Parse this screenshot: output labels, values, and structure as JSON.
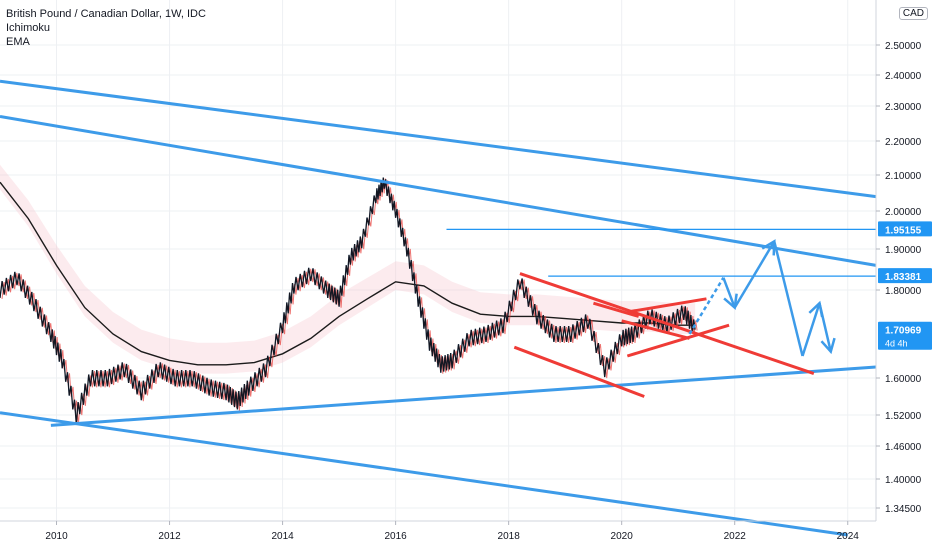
{
  "legend": {
    "title": "British Pound / Canadian Dollar, 1W, IDC",
    "ind1": "Ichimoku",
    "ind2": "EMA"
  },
  "currency_badge": "CAD",
  "colors": {
    "channel": "#3d9be9",
    "wedge": "#ef3b36",
    "hline": "#2196f3",
    "ema": "#1b1b1b",
    "price_up": "#131722",
    "conv": "#e53935",
    "base": "#2196f3",
    "cloud": "#f7c6cf",
    "label_bg": "#2196f3"
  },
  "price_labels": [
    {
      "id": "level-a",
      "text": "1.95155",
      "value": 1.95155
    },
    {
      "id": "level-b",
      "text": "1.83381",
      "value": 1.83381
    },
    {
      "id": "last",
      "text": "1.70969",
      "value": 1.70969,
      "sub": "4d 4h"
    }
  ],
  "chart_data": {
    "type": "line",
    "title": "British Pound / Canadian Dollar, 1W, IDC",
    "indicators": [
      "Ichimoku",
      "EMA"
    ],
    "ylim": [
      1.3,
      2.6
    ],
    "xlim": [
      2009.0,
      2024.5
    ],
    "y_ticks": [
      "2.50000",
      "2.40000",
      "2.30000",
      "2.20000",
      "2.10000",
      "2.00000",
      "1.90000",
      "1.80000",
      "1.60000",
      "1.52000",
      "1.46000",
      "1.40000",
      "1.34500"
    ],
    "y_tick_values": [
      2.5,
      2.4,
      2.3,
      2.2,
      2.1,
      2.0,
      1.9,
      1.8,
      1.6,
      1.52,
      1.46,
      1.4,
      1.345
    ],
    "x_ticks": [
      "2010",
      "2012",
      "2014",
      "2016",
      "2018",
      "2020",
      "2022",
      "2024"
    ],
    "x_tick_values": [
      2010,
      2012,
      2014,
      2016,
      2018,
      2020,
      2022,
      2024
    ],
    "price": {
      "name": "GBPCAD",
      "x": [
        2009.0,
        2009.3,
        2009.6,
        2009.9,
        2010.1,
        2010.35,
        2010.6,
        2010.9,
        2011.2,
        2011.5,
        2011.8,
        2012.1,
        2012.4,
        2012.7,
        2013.0,
        2013.2,
        2013.4,
        2013.7,
        2014.0,
        2014.2,
        2014.5,
        2014.8,
        2015.0,
        2015.2,
        2015.4,
        2015.65,
        2015.8,
        2016.0,
        2016.2,
        2016.4,
        2016.6,
        2016.8,
        2017.0,
        2017.3,
        2017.6,
        2017.9,
        2018.2,
        2018.5,
        2018.8,
        2019.1,
        2019.4,
        2019.7,
        2020.0,
        2020.2,
        2020.5,
        2020.8,
        2021.1,
        2021.3
      ],
      "y": [
        1.8,
        1.83,
        1.77,
        1.7,
        1.64,
        1.52,
        1.6,
        1.6,
        1.62,
        1.57,
        1.62,
        1.6,
        1.6,
        1.58,
        1.57,
        1.55,
        1.58,
        1.62,
        1.72,
        1.81,
        1.84,
        1.8,
        1.78,
        1.88,
        1.92,
        2.04,
        2.08,
        2.0,
        1.9,
        1.78,
        1.68,
        1.63,
        1.64,
        1.69,
        1.7,
        1.72,
        1.82,
        1.74,
        1.7,
        1.7,
        1.73,
        1.62,
        1.69,
        1.7,
        1.74,
        1.72,
        1.75,
        1.71
      ]
    },
    "ema": {
      "name": "EMA",
      "x": [
        2009.0,
        2009.5,
        2010.0,
        2010.5,
        2011.0,
        2011.5,
        2012.0,
        2012.5,
        2013.0,
        2013.5,
        2014.0,
        2014.5,
        2015.0,
        2015.5,
        2016.0,
        2016.5,
        2017.0,
        2017.5,
        2018.0,
        2018.5,
        2019.0,
        2019.5,
        2020.0,
        2020.5,
        2021.0,
        2021.3
      ],
      "y": [
        2.08,
        1.98,
        1.86,
        1.76,
        1.7,
        1.66,
        1.64,
        1.63,
        1.63,
        1.635,
        1.655,
        1.69,
        1.74,
        1.78,
        1.82,
        1.81,
        1.77,
        1.745,
        1.74,
        1.74,
        1.735,
        1.73,
        1.725,
        1.725,
        1.72,
        1.72
      ]
    },
    "channel_lines": [
      {
        "name": "upper-outer",
        "p1": [
          2009.0,
          2.38
        ],
        "p2": [
          2024.5,
          2.04
        ]
      },
      {
        "name": "upper-inner",
        "p1": [
          2009.0,
          2.27
        ],
        "p2": [
          2024.5,
          1.86
        ]
      },
      {
        "name": "support",
        "p1": [
          2009.9,
          1.5
        ],
        "p2": [
          2024.5,
          1.625
        ]
      },
      {
        "name": "lower",
        "p1": [
          2009.0,
          1.525
        ],
        "p2": [
          2024.0,
          1.3
        ]
      }
    ],
    "wedge_lines": [
      {
        "p1": [
          2018.2,
          1.84
        ],
        "p2": [
          2023.4,
          1.61
        ]
      },
      {
        "p1": [
          2018.1,
          1.67
        ],
        "p2": [
          2020.4,
          1.56
        ]
      },
      {
        "p1": [
          2019.5,
          1.77
        ],
        "p2": [
          2020.3,
          1.74
        ]
      },
      {
        "p1": [
          2020.1,
          1.75
        ],
        "p2": [
          2021.5,
          1.78
        ]
      },
      {
        "p1": [
          2020.1,
          1.65
        ],
        "p2": [
          2021.9,
          1.72
        ]
      },
      {
        "p1": [
          2020.0,
          1.73
        ],
        "p2": [
          2021.2,
          1.69
        ]
      }
    ],
    "levels": [
      {
        "value": 1.95155,
        "from": 2016.9,
        "label": "1.95155"
      },
      {
        "value": 1.83381,
        "from": 2018.7,
        "label": "1.83381"
      }
    ],
    "projection": {
      "points": [
        [
          2021.2,
          1.7
        ],
        [
          2021.8,
          1.83
        ],
        [
          2022.0,
          1.76
        ],
        [
          2022.7,
          1.92
        ],
        [
          2023.2,
          1.65
        ],
        [
          2023.5,
          1.77
        ],
        [
          2023.7,
          1.66
        ]
      ]
    }
  }
}
